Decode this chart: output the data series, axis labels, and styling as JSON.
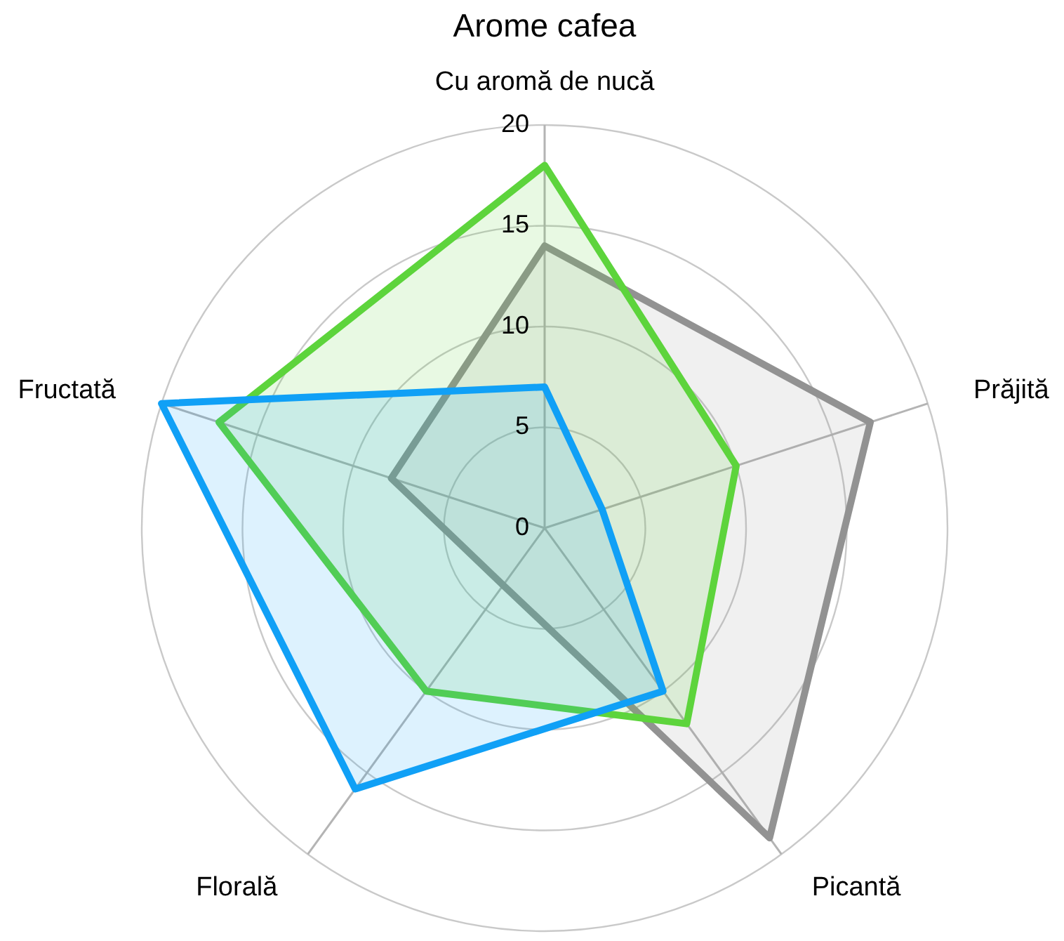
{
  "chart_data": {
    "type": "radar",
    "title": "Arome cafea",
    "categories": [
      "Cu aromă de nucă",
      "Prăjită",
      "Picantă",
      "Florală",
      "Fructată"
    ],
    "series": [
      {
        "color": "#929292",
        "values": [
          14,
          17,
          19,
          3.5,
          8
        ]
      },
      {
        "color": "#5dd43c",
        "values": [
          18,
          10,
          12,
          10,
          17
        ]
      },
      {
        "color": "#10a0f6",
        "values": [
          7,
          3,
          10,
          16,
          20
        ]
      }
    ],
    "ylim": [
      0,
      20
    ],
    "yticks": [
      0,
      5,
      10,
      15,
      20
    ],
    "grid": true,
    "marker": "none"
  }
}
